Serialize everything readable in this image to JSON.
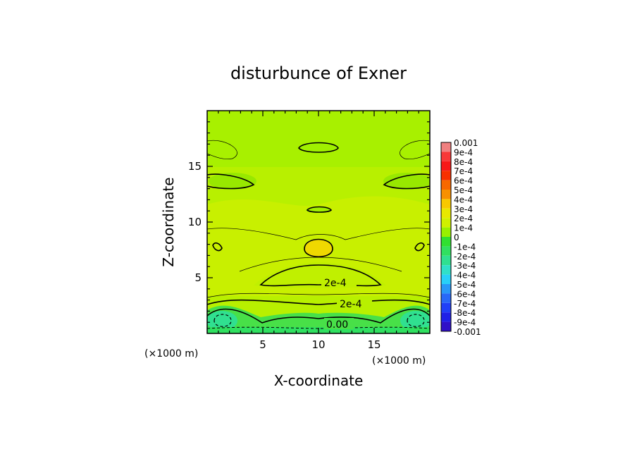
{
  "chart_data": {
    "type": "heatmap",
    "title": "disturbunce of Exner",
    "xlabel": "X-coordinate",
    "ylabel": "Z-coordinate",
    "xlim": [
      0,
      20
    ],
    "ylim": [
      0,
      20
    ],
    "x_ticks": [
      5,
      10,
      15
    ],
    "y_ticks": [
      5,
      10,
      15
    ],
    "x_unit_label": "(×1000 m)",
    "y_unit_label": "(×1000 m)",
    "contour_labels": [
      {
        "text": "2e-4",
        "x": 10.6,
        "z": 4.6
      },
      {
        "text": "2e-4",
        "x": 13.2,
        "z": 2.7
      },
      {
        "text": "0.00",
        "x": 11.9,
        "z": 0.9
      }
    ],
    "colorbar": {
      "levels": [
        "0.001",
        "9e-4",
        "8e-4",
        "7e-4",
        "6e-4",
        "5e-4",
        "4e-4",
        "3e-4",
        "2e-4",
        "1e-4",
        "0",
        "-1e-4",
        "-2e-4",
        "-3e-4",
        "-4e-4",
        "-5e-4",
        "-6e-4",
        "-7e-4",
        "-8e-4",
        "-9e-4",
        "-0.001"
      ],
      "colors": [
        "#f08080",
        "#f83838",
        "#f81818",
        "#f83000",
        "#f86800",
        "#f89000",
        "#f8c800",
        "#e8e800",
        "#d0f000",
        "#98f000",
        "#30e030",
        "#30e060",
        "#30e090",
        "#30e0c8",
        "#28d0f8",
        "#2898f8",
        "#2868f8",
        "#2040f8",
        "#2020e8",
        "#3010c8",
        "#6010a8"
      ]
    },
    "fields": [
      {
        "region": "bottom boundary layer",
        "x": [
          0,
          20
        ],
        "z": [
          0,
          1.5
        ],
        "approx_value": "-1e-4 to 0"
      },
      {
        "region": "centre maximum",
        "x": 10,
        "z": 7.5,
        "approx_value": "3e-4"
      },
      {
        "region": "background",
        "x": [
          0,
          20
        ],
        "z": [
          2,
          20
        ],
        "approx_value": "1e-4 to 2e-4"
      }
    ]
  }
}
